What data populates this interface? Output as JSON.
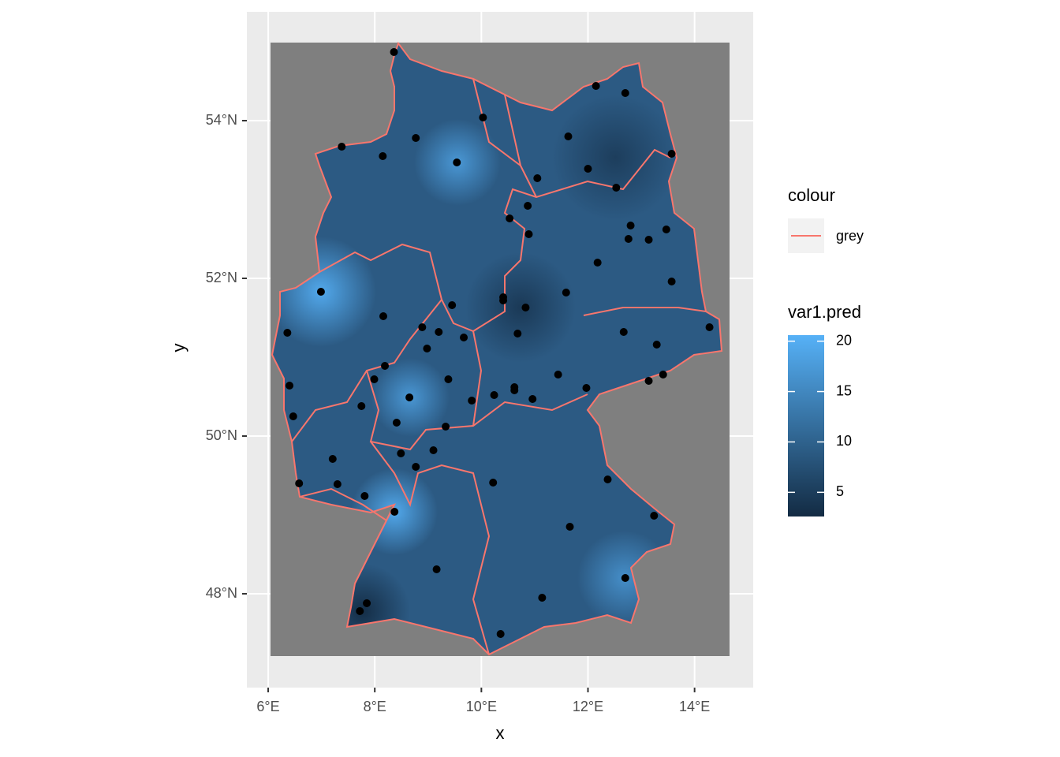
{
  "chart_data": {
    "type": "scatter",
    "x_label": "x",
    "y_label": "y",
    "xlim": [
      5.6,
      15.1
    ],
    "ylim": [
      46.81,
      55.38
    ],
    "xticks": [
      {
        "value": 6,
        "label": "6°E"
      },
      {
        "value": 8,
        "label": "8°E"
      },
      {
        "value": 10,
        "label": "10°E"
      },
      {
        "value": 12,
        "label": "12°E"
      },
      {
        "value": 14,
        "label": "14°E"
      }
    ],
    "yticks": [
      {
        "value": 48,
        "label": "48°N"
      },
      {
        "value": 50,
        "label": "50°N"
      },
      {
        "value": 52,
        "label": "52°N"
      },
      {
        "value": 54,
        "label": "54°N"
      }
    ],
    "grid": true,
    "point_color": "#000000",
    "outline_color": "#F8766D",
    "x": [
      8.36,
      10.03,
      12.15,
      12.7,
      7.38,
      8.15,
      8.77,
      9.54,
      11.63,
      13.57,
      12.0,
      11.05,
      12.53,
      10.87,
      10.53,
      12.8,
      13.47,
      10.89,
      12.76,
      13.14,
      12.18,
      13.57,
      6.99,
      11.59,
      9.45,
      10.41,
      10.41,
      10.83,
      8.16,
      6.36,
      8.89,
      9.2,
      9.67,
      10.68,
      8.98,
      12.67,
      13.29,
      14.28,
      8.19,
      7.99,
      6.4,
      9.38,
      11.44,
      10.62,
      10.62,
      10.24,
      9.82,
      10.96,
      11.97,
      13.14,
      13.41,
      8.65,
      7.75,
      6.47,
      8.41,
      9.33,
      8.49,
      9.1,
      7.21,
      6.58,
      7.3,
      8.77,
      10.22,
      12.37,
      7.81,
      8.37,
      13.24,
      11.66,
      9.16,
      12.7,
      11.14,
      7.85,
      7.72,
      10.36
    ],
    "y": [
      54.87,
      54.04,
      54.44,
      54.35,
      53.67,
      53.55,
      53.78,
      53.47,
      53.8,
      53.58,
      53.39,
      53.27,
      53.15,
      52.92,
      52.76,
      52.67,
      52.62,
      52.56,
      52.5,
      52.49,
      52.2,
      51.96,
      51.83,
      51.82,
      51.66,
      51.76,
      51.72,
      51.63,
      51.52,
      51.31,
      51.38,
      51.32,
      51.25,
      51.3,
      51.11,
      51.32,
      51.16,
      51.38,
      50.89,
      50.72,
      50.64,
      50.72,
      50.78,
      50.62,
      50.58,
      50.52,
      50.45,
      50.47,
      50.61,
      50.7,
      50.78,
      50.49,
      50.38,
      50.25,
      50.17,
      50.12,
      49.78,
      49.82,
      49.71,
      49.4,
      49.39,
      49.61,
      49.41,
      49.45,
      49.24,
      49.04,
      48.99,
      48.85,
      48.31,
      48.2,
      47.95,
      47.88,
      47.78,
      47.49
    ],
    "legend": {
      "colour_title": "colour",
      "colour_entry": "grey",
      "fill_title": "var1.pred",
      "fill_lim": [
        2.6,
        20.6
      ],
      "fill_ticks": [
        5,
        10,
        15,
        20
      ],
      "fill_colors": [
        "#132B43",
        "#56B1F7"
      ]
    }
  }
}
